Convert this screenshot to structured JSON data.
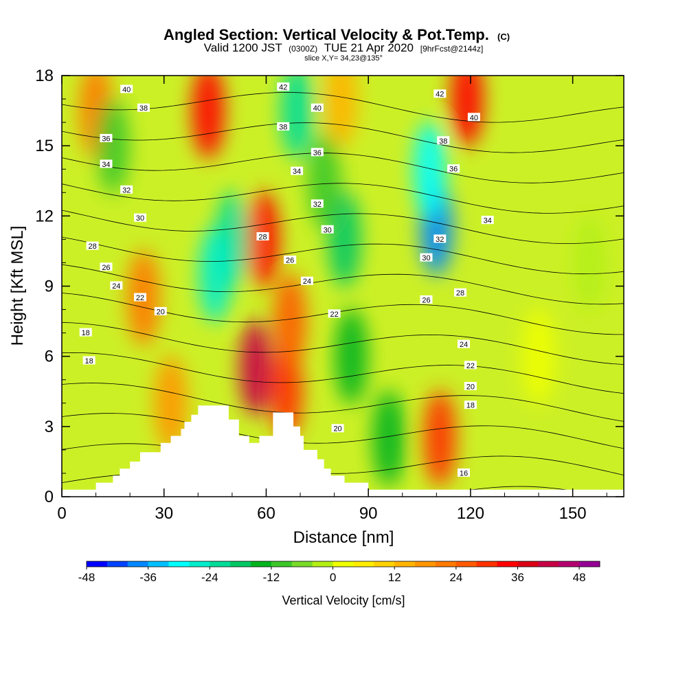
{
  "title": {
    "main": "Angled Section: Vertical Velocity & Pot.Temp.",
    "copyright": "(C)",
    "valid_prefix": "Valid 1200 JST",
    "valid_utc": "(0300Z)",
    "valid_date": "TUE 21 Apr 2020",
    "forecast": "[9hrFcst@2144z]",
    "slice": "slice X,Y= 34,23@135°"
  },
  "chart_data": {
    "type": "heatmap",
    "xlabel": "Distance [nm]",
    "ylabel": "Height [Kft MSL]",
    "xlim": [
      0,
      165
    ],
    "ylim": [
      0,
      18
    ],
    "x_ticks": [
      "0",
      "30",
      "60",
      "90",
      "120",
      "150"
    ],
    "y_ticks": [
      "0",
      "3",
      "6",
      "9",
      "12",
      "15",
      "18"
    ],
    "colorbar": {
      "label": "Vertical Velocity [cm/s]",
      "range": [
        -48,
        52
      ],
      "step": 4,
      "tick_labels": [
        "-48",
        "-36",
        "-24",
        "-12",
        "0",
        "12",
        "24",
        "36",
        "48"
      ],
      "colors": [
        "#0000ff",
        "#0044ff",
        "#0088ff",
        "#00c0ff",
        "#00ffff",
        "#00eecc",
        "#00dd99",
        "#00c864",
        "#00b41e",
        "#3cc828",
        "#78dc28",
        "#b4f014",
        "#f0ff00",
        "#ffee00",
        "#ffd200",
        "#ffb400",
        "#ff9600",
        "#ff7800",
        "#ff5a00",
        "#ff3200",
        "#ff0000",
        "#dc0014",
        "#c80046",
        "#b4006e",
        "#960096"
      ]
    },
    "vertical_velocity_features": [
      {
        "x": 43,
        "z": 16.5,
        "w": 32
      },
      {
        "x": 57,
        "z": 5.5,
        "w": 40
      },
      {
        "x": 59,
        "z": 11,
        "w": 34
      },
      {
        "x": 66,
        "z": 4.5,
        "w": 28
      },
      {
        "x": 67,
        "z": 7.5,
        "w": 24
      },
      {
        "x": 111,
        "z": 2.5,
        "w": 30
      },
      {
        "x": 119,
        "z": 17,
        "w": 34
      },
      {
        "x": 10,
        "z": 16.5,
        "w": 20
      },
      {
        "x": 24,
        "z": 8.5,
        "w": 22
      },
      {
        "x": 32,
        "z": 4,
        "w": 18
      },
      {
        "x": 82,
        "z": 17,
        "w": 14
      },
      {
        "x": 155,
        "z": 10,
        "w": -4
      },
      {
        "x": 50,
        "z": 11,
        "w": -22
      },
      {
        "x": 45,
        "z": 9.5,
        "w": -26
      },
      {
        "x": 69,
        "z": 16.5,
        "w": -24
      },
      {
        "x": 110,
        "z": 11.5,
        "w": -40
      },
      {
        "x": 108,
        "z": 14,
        "w": -32
      },
      {
        "x": 83,
        "z": 11,
        "w": -18
      },
      {
        "x": 85,
        "z": 6,
        "w": -14
      },
      {
        "x": 96,
        "z": 2.5,
        "w": -16
      },
      {
        "x": 77,
        "z": 13.5,
        "w": -12
      },
      {
        "x": 15,
        "z": 15,
        "w": -10
      },
      {
        "x": 140,
        "z": 6,
        "w": 2
      }
    ],
    "potential_temperature_contours": {
      "levels": [
        16,
        18,
        20,
        22,
        24,
        26,
        28,
        30,
        32,
        34,
        36,
        38,
        40,
        42
      ],
      "labels": [
        {
          "text": "40",
          "x": 19,
          "z": 17.4
        },
        {
          "text": "38",
          "x": 24,
          "z": 16.6
        },
        {
          "text": "36",
          "x": 13,
          "z": 15.3
        },
        {
          "text": "34",
          "x": 13,
          "z": 14.2
        },
        {
          "text": "32",
          "x": 19,
          "z": 13.1
        },
        {
          "text": "30",
          "x": 23,
          "z": 11.9
        },
        {
          "text": "28",
          "x": 9,
          "z": 10.7
        },
        {
          "text": "26",
          "x": 13,
          "z": 9.8
        },
        {
          "text": "24",
          "x": 16,
          "z": 9.0
        },
        {
          "text": "22",
          "x": 23,
          "z": 8.5
        },
        {
          "text": "20",
          "x": 29,
          "z": 7.9
        },
        {
          "text": "18",
          "x": 7,
          "z": 7.0
        },
        {
          "text": "18",
          "x": 8,
          "z": 5.8
        },
        {
          "text": "42",
          "x": 65,
          "z": 17.5
        },
        {
          "text": "40",
          "x": 75,
          "z": 16.6
        },
        {
          "text": "38",
          "x": 65,
          "z": 15.8
        },
        {
          "text": "36",
          "x": 75,
          "z": 14.7
        },
        {
          "text": "34",
          "x": 69,
          "z": 13.9
        },
        {
          "text": "32",
          "x": 75,
          "z": 12.5
        },
        {
          "text": "30",
          "x": 78,
          "z": 11.4
        },
        {
          "text": "28",
          "x": 59,
          "z": 11.1
        },
        {
          "text": "26",
          "x": 67,
          "z": 10.1
        },
        {
          "text": "24",
          "x": 72,
          "z": 9.2
        },
        {
          "text": "22",
          "x": 80,
          "z": 7.8
        },
        {
          "text": "20",
          "x": 81,
          "z": 2.9
        },
        {
          "text": "42",
          "x": 111,
          "z": 17.2
        },
        {
          "text": "40",
          "x": 121,
          "z": 16.2
        },
        {
          "text": "38",
          "x": 112,
          "z": 15.2
        },
        {
          "text": "36",
          "x": 115,
          "z": 14.0
        },
        {
          "text": "34",
          "x": 125,
          "z": 11.8
        },
        {
          "text": "32",
          "x": 111,
          "z": 11.0
        },
        {
          "text": "30",
          "x": 107,
          "z": 10.2
        },
        {
          "text": "28",
          "x": 117,
          "z": 8.7
        },
        {
          "text": "26",
          "x": 107,
          "z": 8.4
        },
        {
          "text": "24",
          "x": 118,
          "z": 6.5
        },
        {
          "text": "22",
          "x": 120,
          "z": 5.6
        },
        {
          "text": "20",
          "x": 120,
          "z": 4.7
        },
        {
          "text": "18",
          "x": 120,
          "z": 3.9
        },
        {
          "text": "16",
          "x": 118,
          "z": 1.0
        }
      ]
    },
    "terrain_kft": [
      [
        0,
        0.3
      ],
      [
        10,
        0.3
      ],
      [
        10,
        0.6
      ],
      [
        15,
        0.6
      ],
      [
        15,
        0.9
      ],
      [
        17,
        0.9
      ],
      [
        17,
        1.2
      ],
      [
        20,
        1.2
      ],
      [
        20,
        1.5
      ],
      [
        23,
        1.5
      ],
      [
        23,
        1.9
      ],
      [
        29,
        1.9
      ],
      [
        29,
        2.3
      ],
      [
        32,
        2.3
      ],
      [
        32,
        2.6
      ],
      [
        35,
        2.6
      ],
      [
        35,
        2.9
      ],
      [
        36,
        2.9
      ],
      [
        36,
        3.2
      ],
      [
        38,
        3.2
      ],
      [
        38,
        3.5
      ],
      [
        40,
        3.5
      ],
      [
        40,
        3.9
      ],
      [
        49,
        3.9
      ],
      [
        49,
        3.3
      ],
      [
        52,
        3.3
      ],
      [
        52,
        2.6
      ],
      [
        55,
        2.6
      ],
      [
        55,
        2.3
      ],
      [
        58,
        2.3
      ],
      [
        58,
        2.6
      ],
      [
        62,
        2.6
      ],
      [
        62,
        3.6
      ],
      [
        68,
        3.6
      ],
      [
        68,
        3.0
      ],
      [
        70,
        3.0
      ],
      [
        70,
        2.6
      ],
      [
        71,
        2.6
      ],
      [
        71,
        2.0
      ],
      [
        75,
        2.0
      ],
      [
        75,
        1.6
      ],
      [
        77,
        1.6
      ],
      [
        77,
        1.2
      ],
      [
        79,
        1.2
      ],
      [
        79,
        0.9
      ],
      [
        83,
        0.9
      ],
      [
        83,
        0.6
      ],
      [
        90,
        0.6
      ],
      [
        90,
        0.3
      ],
      [
        165,
        0.3
      ]
    ]
  }
}
